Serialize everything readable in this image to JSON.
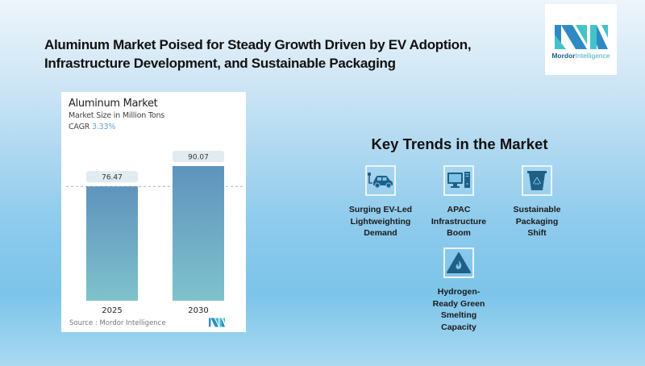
{
  "headline": {
    "line1": "Aluminum Market Poised for Steady Growth Driven by EV Adoption,",
    "line2": "Infrastructure Development, and Sustainable Packaging"
  },
  "logo": {
    "brand_bold": "Mordor",
    "brand_light": "Intelligence",
    "icon": "mordor-intelligence-logo"
  },
  "chart_card": {
    "title": "Aluminum Market",
    "subtitle": "Market Size in Million Tons",
    "cagr_label": "CAGR",
    "cagr_value": "3.33%",
    "source": "Source :  Mordor Intelligence"
  },
  "chart_data": {
    "type": "bar",
    "title": "Aluminum Market",
    "subtitle": "Market Size in Million Tons",
    "categories": [
      "2025",
      "2030"
    ],
    "values": [
      76.47,
      90.07
    ],
    "value_labels": [
      "76.47",
      "90.07"
    ],
    "ylabel": "Million Tons",
    "xlabel": "",
    "cagr": "3.33%",
    "reference_line": "dashed line at 2025 value",
    "grid": false,
    "colors": {
      "bar_top": "#5f93bd",
      "bar_bottom": "#7fc2cc",
      "label_bg": "#e1ebf0"
    }
  },
  "trends": {
    "title": "Key Trends in the Market",
    "items": [
      {
        "label_lines": [
          "Surging EV-Led",
          "Lightweighting",
          "Demand"
        ],
        "icon": "ev-car-charging-icon"
      },
      {
        "label_lines": [
          "APAC",
          "Infrastructure",
          "Boom"
        ],
        "icon": "desktop-computer-icon"
      },
      {
        "label_lines": [
          "Sustainable",
          "Packaging",
          "Shift"
        ],
        "icon": "recycle-bin-icon"
      },
      {
        "label_lines": [
          "Hydrogen-",
          "Ready Green",
          "Smelting",
          "Capacity"
        ],
        "icon": "hydrogen-flame-warning-icon"
      }
    ]
  },
  "colors": {
    "icon_fill": "#1f5f86",
    "accent": "#6aa4cf"
  }
}
